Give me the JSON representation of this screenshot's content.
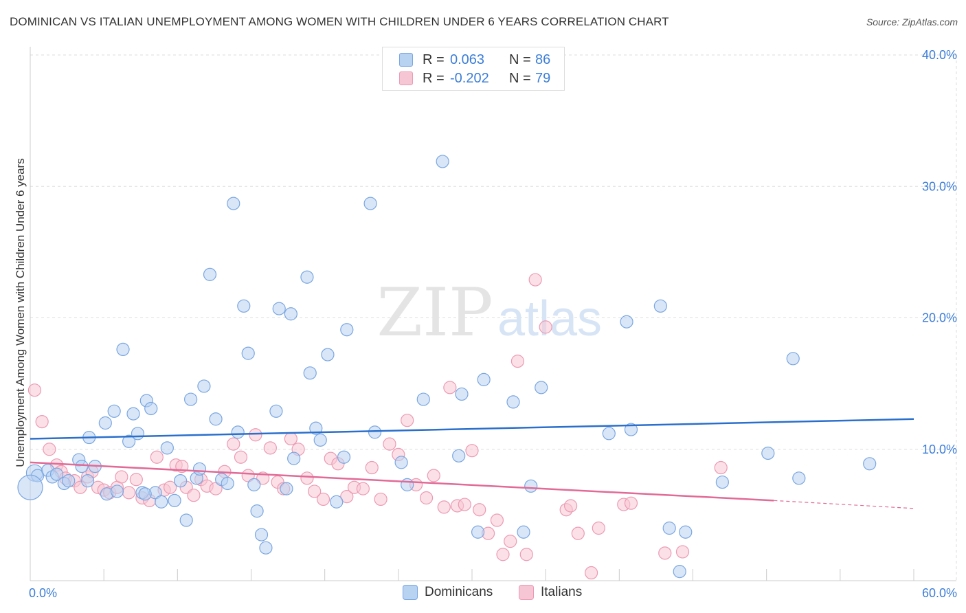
{
  "header": {
    "title": "DOMINICAN VS ITALIAN UNEMPLOYMENT AMONG WOMEN WITH CHILDREN UNDER 6 YEARS CORRELATION CHART",
    "source": "Source: ZipAtlas.com"
  },
  "watermark": {
    "zip": "ZIP",
    "atlas": "atlas"
  },
  "legend": {
    "dominicans": {
      "r_label": "R =",
      "r_value": "0.063",
      "n_label": "N =",
      "n_value": "86",
      "name": "Dominicans"
    },
    "italians": {
      "r_label": "R =",
      "r_value": "-0.202",
      "n_label": "N =",
      "n_value": "79",
      "name": "Italians"
    }
  },
  "colors": {
    "dominicans_fill": "#b8d2f2",
    "dominicans_stroke": "#7aa6e0",
    "dominicans_line": "#2a6fcc",
    "italians_fill": "#f7c6d4",
    "italians_stroke": "#ec9ab3",
    "italians_line": "#e26a96",
    "axis_label": "#3b7dd8",
    "grid": "#dddddd"
  },
  "chart_data": {
    "type": "scatter",
    "title": "DOMINICAN VS ITALIAN UNEMPLOYMENT AMONG WOMEN WITH CHILDREN UNDER 6 YEARS CORRELATION CHART",
    "xlabel": "",
    "ylabel": "Unemployment Among Women with Children Under 6 years",
    "xlim": [
      0,
      60
    ],
    "ylim": [
      0,
      40
    ],
    "x_tick_labels": [
      "0.0%",
      "60.0%"
    ],
    "y_ticks": [
      10,
      20,
      30,
      40
    ],
    "y_tick_labels": [
      "10.0%",
      "20.0%",
      "30.0%",
      "40.0%"
    ],
    "grid": true,
    "legend_position": "top-center",
    "series": [
      {
        "name": "Dominicans",
        "r": 0.063,
        "n": 86,
        "trend": {
          "x": [
            0,
            60
          ],
          "y": [
            10.8,
            12.3
          ]
        },
        "points": [
          [
            0.3,
            8.2
          ],
          [
            0.5,
            8.0
          ],
          [
            1.2,
            8.4
          ],
          [
            1.5,
            7.9
          ],
          [
            1.8,
            8.1
          ],
          [
            2.3,
            7.4
          ],
          [
            2.6,
            7.6
          ],
          [
            3.3,
            9.2
          ],
          [
            3.5,
            8.7
          ],
          [
            3.9,
            7.6
          ],
          [
            4.0,
            10.9
          ],
          [
            4.4,
            8.7
          ],
          [
            5.1,
            12.0
          ],
          [
            5.2,
            6.6
          ],
          [
            5.7,
            12.9
          ],
          [
            5.9,
            6.8
          ],
          [
            6.3,
            17.6
          ],
          [
            6.7,
            10.6
          ],
          [
            7.0,
            12.7
          ],
          [
            7.3,
            11.2
          ],
          [
            7.6,
            6.7
          ],
          [
            7.9,
            13.7
          ],
          [
            8.2,
            13.1
          ],
          [
            8.5,
            6.7
          ],
          [
            8.9,
            6.0
          ],
          [
            9.3,
            10.1
          ],
          [
            9.8,
            6.1
          ],
          [
            10.2,
            7.6
          ],
          [
            10.6,
            4.6
          ],
          [
            10.9,
            13.8
          ],
          [
            11.3,
            7.8
          ],
          [
            11.5,
            8.5
          ],
          [
            11.8,
            14.8
          ],
          [
            12.2,
            23.3
          ],
          [
            12.6,
            12.3
          ],
          [
            13.0,
            7.7
          ],
          [
            13.4,
            7.4
          ],
          [
            13.8,
            28.7
          ],
          [
            14.1,
            11.3
          ],
          [
            14.5,
            20.9
          ],
          [
            14.8,
            17.3
          ],
          [
            15.2,
            7.3
          ],
          [
            15.4,
            5.3
          ],
          [
            15.7,
            3.5
          ],
          [
            16.0,
            2.5
          ],
          [
            16.7,
            12.9
          ],
          [
            16.9,
            20.7
          ],
          [
            17.4,
            7.0
          ],
          [
            17.7,
            20.3
          ],
          [
            17.9,
            9.3
          ],
          [
            18.8,
            23.1
          ],
          [
            19.0,
            15.8
          ],
          [
            19.4,
            11.6
          ],
          [
            19.7,
            10.7
          ],
          [
            20.2,
            17.2
          ],
          [
            20.8,
            6.0
          ],
          [
            21.3,
            9.4
          ],
          [
            21.5,
            19.1
          ],
          [
            23.1,
            28.7
          ],
          [
            23.4,
            11.3
          ],
          [
            25.2,
            9.0
          ],
          [
            25.6,
            7.3
          ],
          [
            26.7,
            13.8
          ],
          [
            28.0,
            31.9
          ],
          [
            29.1,
            9.5
          ],
          [
            29.3,
            14.2
          ],
          [
            30.4,
            3.7
          ],
          [
            30.8,
            15.3
          ],
          [
            32.8,
            13.6
          ],
          [
            33.5,
            3.7
          ],
          [
            34.0,
            7.2
          ],
          [
            34.7,
            14.7
          ],
          [
            39.3,
            11.2
          ],
          [
            40.5,
            19.7
          ],
          [
            40.8,
            11.5
          ],
          [
            42.8,
            20.9
          ],
          [
            43.4,
            4.0
          ],
          [
            44.1,
            0.7
          ],
          [
            44.5,
            3.7
          ],
          [
            47.0,
            7.5
          ],
          [
            50.1,
            9.7
          ],
          [
            51.8,
            16.9
          ],
          [
            52.2,
            7.8
          ],
          [
            57.0,
            8.9
          ],
          [
            0.0,
            7.1
          ],
          [
            7.8,
            6.6
          ]
        ]
      },
      {
        "name": "Italians",
        "r": -0.202,
        "n": 79,
        "trend": {
          "x": [
            0,
            50.5
          ],
          "y": [
            9.0,
            6.1
          ]
        },
        "trend_dashed": {
          "x": [
            50.5,
            60
          ],
          "y": [
            6.1,
            5.5
          ]
        },
        "points": [
          [
            0.3,
            14.5
          ],
          [
            0.8,
            12.1
          ],
          [
            1.3,
            10.0
          ],
          [
            1.8,
            8.8
          ],
          [
            2.1,
            8.3
          ],
          [
            2.4,
            7.8
          ],
          [
            3.0,
            7.6
          ],
          [
            3.4,
            7.1
          ],
          [
            3.9,
            7.9
          ],
          [
            4.2,
            8.3
          ],
          [
            4.6,
            7.1
          ],
          [
            5.0,
            6.9
          ],
          [
            5.4,
            6.7
          ],
          [
            5.9,
            7.1
          ],
          [
            6.2,
            7.9
          ],
          [
            6.7,
            6.7
          ],
          [
            7.2,
            7.7
          ],
          [
            7.6,
            6.3
          ],
          [
            8.1,
            6.1
          ],
          [
            8.6,
            9.4
          ],
          [
            9.1,
            6.9
          ],
          [
            9.5,
            7.1
          ],
          [
            9.9,
            8.8
          ],
          [
            10.3,
            8.7
          ],
          [
            10.6,
            7.1
          ],
          [
            11.1,
            6.5
          ],
          [
            11.6,
            7.7
          ],
          [
            12.0,
            7.2
          ],
          [
            12.6,
            7.0
          ],
          [
            13.2,
            8.3
          ],
          [
            13.8,
            10.4
          ],
          [
            14.3,
            9.4
          ],
          [
            14.8,
            8.0
          ],
          [
            15.3,
            11.1
          ],
          [
            15.8,
            7.8
          ],
          [
            16.3,
            10.1
          ],
          [
            16.8,
            7.5
          ],
          [
            17.2,
            7.0
          ],
          [
            17.7,
            10.8
          ],
          [
            18.2,
            10.0
          ],
          [
            18.8,
            7.8
          ],
          [
            19.3,
            6.8
          ],
          [
            19.9,
            6.2
          ],
          [
            20.4,
            9.3
          ],
          [
            20.9,
            8.9
          ],
          [
            21.5,
            6.4
          ],
          [
            22.0,
            7.1
          ],
          [
            22.6,
            7.0
          ],
          [
            23.2,
            8.6
          ],
          [
            23.8,
            6.2
          ],
          [
            24.4,
            10.4
          ],
          [
            25.0,
            9.6
          ],
          [
            25.6,
            12.2
          ],
          [
            26.2,
            7.3
          ],
          [
            26.9,
            6.3
          ],
          [
            27.4,
            8.0
          ],
          [
            28.1,
            5.6
          ],
          [
            28.5,
            14.7
          ],
          [
            29.0,
            5.7
          ],
          [
            29.5,
            5.8
          ],
          [
            30.0,
            9.9
          ],
          [
            30.5,
            5.4
          ],
          [
            31.1,
            3.6
          ],
          [
            31.7,
            4.6
          ],
          [
            32.1,
            2.0
          ],
          [
            32.6,
            3.0
          ],
          [
            33.1,
            16.7
          ],
          [
            33.7,
            2.0
          ],
          [
            34.3,
            22.9
          ],
          [
            35.0,
            19.3
          ],
          [
            36.4,
            5.4
          ],
          [
            36.7,
            5.7
          ],
          [
            37.2,
            3.6
          ],
          [
            38.1,
            0.6
          ],
          [
            38.6,
            4.0
          ],
          [
            40.3,
            5.8
          ],
          [
            40.8,
            5.9
          ],
          [
            43.1,
            2.1
          ],
          [
            44.3,
            2.2
          ],
          [
            46.9,
            8.6
          ]
        ]
      }
    ]
  }
}
